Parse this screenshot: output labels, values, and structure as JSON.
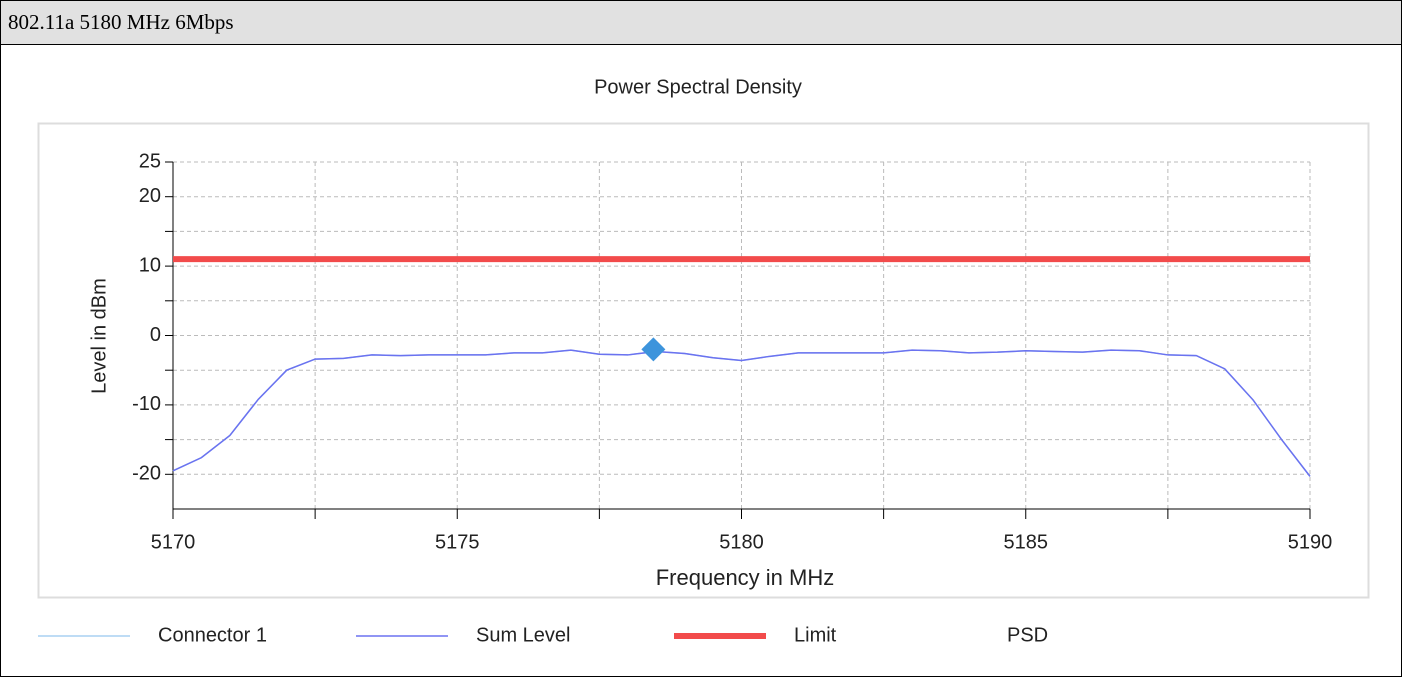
{
  "header": {
    "title": "802.11a 5180 MHz 6Mbps"
  },
  "chart_data": {
    "type": "line",
    "title": "Power Spectral Density",
    "x_label": "Frequency in MHz",
    "y_label": "Level in dBm",
    "xlim": [
      5170,
      5190
    ],
    "xticks": [
      5170,
      5175,
      5180,
      5185,
      5190
    ],
    "xticks_minor": [
      5172.5,
      5177.5,
      5182.5,
      5187.5
    ],
    "ylim": [
      -25,
      25
    ],
    "yticks": [
      -20,
      -10,
      0,
      10,
      20,
      25
    ],
    "yticks_minor": [
      -15,
      -5,
      5,
      15
    ],
    "grid": true,
    "legend": "bottom",
    "series": [
      {
        "name": "Connector 1",
        "color": "#a9d1f2",
        "width": 1.5,
        "x": [
          5170,
          5170.5,
          5171,
          5171.5,
          5172,
          5172.5,
          5173,
          5173.5,
          5174,
          5174.5,
          5175,
          5175.5,
          5176,
          5176.5,
          5177,
          5177.5,
          5178,
          5178.5,
          5179,
          5179.5,
          5180,
          5180.5,
          5181,
          5181.5,
          5182,
          5182.5,
          5183,
          5183.5,
          5184,
          5184.5,
          5185,
          5185.5,
          5186,
          5186.5,
          5187,
          5187.5,
          5188,
          5188.5,
          5189,
          5189.5,
          5190
        ],
        "values": [
          -19.5,
          -17.6,
          -14.4,
          -9.2,
          -5.0,
          -3.4,
          -3.3,
          -2.8,
          -2.9,
          -2.8,
          -2.8,
          -2.8,
          -2.5,
          -2.5,
          -2.1,
          -2.7,
          -2.8,
          -2.3,
          -2.6,
          -3.2,
          -3.6,
          -3.0,
          -2.5,
          -2.5,
          -2.5,
          -2.5,
          -2.1,
          -2.2,
          -2.5,
          -2.4,
          -2.2,
          -2.3,
          -2.4,
          -2.1,
          -2.2,
          -2.8,
          -2.9,
          -4.8,
          -9.3,
          -15.0,
          -20.3
        ]
      },
      {
        "name": "Sum Level",
        "color": "#6b72f0",
        "width": 1.5,
        "x": [
          5170,
          5170.5,
          5171,
          5171.5,
          5172,
          5172.5,
          5173,
          5173.5,
          5174,
          5174.5,
          5175,
          5175.5,
          5176,
          5176.5,
          5177,
          5177.5,
          5178,
          5178.5,
          5179,
          5179.5,
          5180,
          5180.5,
          5181,
          5181.5,
          5182,
          5182.5,
          5183,
          5183.5,
          5184,
          5184.5,
          5185,
          5185.5,
          5186,
          5186.5,
          5187,
          5187.5,
          5188,
          5188.5,
          5189,
          5189.5,
          5190
        ],
        "values": [
          -19.5,
          -17.6,
          -14.4,
          -9.2,
          -5.0,
          -3.4,
          -3.3,
          -2.8,
          -2.9,
          -2.8,
          -2.8,
          -2.8,
          -2.5,
          -2.5,
          -2.1,
          -2.7,
          -2.8,
          -2.3,
          -2.6,
          -3.2,
          -3.6,
          -3.0,
          -2.5,
          -2.5,
          -2.5,
          -2.5,
          -2.1,
          -2.2,
          -2.5,
          -2.4,
          -2.2,
          -2.3,
          -2.4,
          -2.1,
          -2.2,
          -2.8,
          -2.9,
          -4.8,
          -9.3,
          -15.0,
          -20.3
        ]
      },
      {
        "name": "Limit",
        "color": "#f24b4b",
        "width": 6,
        "x": [
          5170,
          5190
        ],
        "values": [
          11,
          11
        ]
      },
      {
        "name": "PSD",
        "color": "#3d94dc",
        "marker": "diamond",
        "x": [
          5178.45
        ],
        "values": [
          -2
        ]
      }
    ]
  }
}
